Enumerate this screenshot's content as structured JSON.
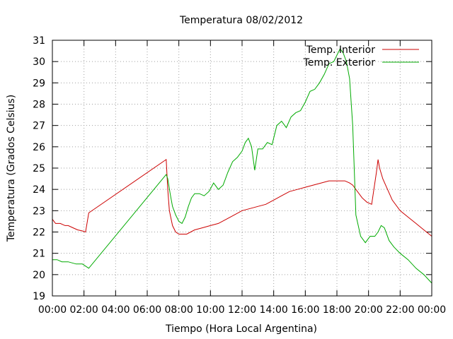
{
  "chart_data": {
    "type": "line",
    "title": "Temperatura 08/02/2012",
    "xlabel": "Tiempo (Hora Local Argentina)",
    "ylabel": "Temperatura (Grados Celsius)",
    "xlim": [
      0,
      24
    ],
    "ylim": [
      19,
      31
    ],
    "x_ticks": [
      "00:00",
      "02:00",
      "04:00",
      "06:00",
      "08:00",
      "10:00",
      "12:00",
      "14:00",
      "16:00",
      "18:00",
      "20:00",
      "22:00",
      "00:00"
    ],
    "y_ticks": [
      "19",
      "20",
      "21",
      "22",
      "23",
      "24",
      "25",
      "26",
      "27",
      "28",
      "29",
      "30",
      "31"
    ],
    "grid": true,
    "legend_position": "top-right",
    "series": [
      {
        "name": "Temp. Interior",
        "color": "#cc0000",
        "x": [
          0,
          0.2,
          0.5,
          0.8,
          1.0,
          1.3,
          1.6,
          1.9,
          2.1,
          2.3,
          7.2,
          7.3,
          7.4,
          7.6,
          7.8,
          8.0,
          8.5,
          9.0,
          9.5,
          10.0,
          10.5,
          11.0,
          11.5,
          12.0,
          12.5,
          13.0,
          13.5,
          14.0,
          14.5,
          15.0,
          15.5,
          16.0,
          16.5,
          17.0,
          17.5,
          18.0,
          18.5,
          18.8,
          19.0,
          19.3,
          19.6,
          19.9,
          20.2,
          20.5,
          20.6,
          20.7,
          20.9,
          21.2,
          21.5,
          22.0,
          22.5,
          23.0,
          23.5,
          24.0
        ],
        "y": [
          22.6,
          22.4,
          22.4,
          22.3,
          22.3,
          22.2,
          22.1,
          22.05,
          22.0,
          22.9,
          25.4,
          24.0,
          23.0,
          22.3,
          22.0,
          21.9,
          21.9,
          22.1,
          22.2,
          22.3,
          22.4,
          22.6,
          22.8,
          23.0,
          23.1,
          23.2,
          23.3,
          23.5,
          23.7,
          23.9,
          24.0,
          24.1,
          24.2,
          24.3,
          24.4,
          24.4,
          24.4,
          24.3,
          24.2,
          23.9,
          23.6,
          23.4,
          23.3,
          24.8,
          25.4,
          25.0,
          24.5,
          24.0,
          23.5,
          23.0,
          22.7,
          22.4,
          22.1,
          21.8
        ]
      },
      {
        "name": "Temp. Exterior",
        "color": "#00aa00",
        "x": [
          0,
          0.3,
          0.6,
          1.0,
          1.5,
          1.9,
          2.1,
          2.3,
          7.2,
          7.3,
          7.45,
          7.6,
          7.8,
          8.0,
          8.2,
          8.4,
          8.6,
          8.8,
          9.0,
          9.3,
          9.6,
          9.9,
          10.2,
          10.5,
          10.8,
          11.1,
          11.4,
          11.7,
          12.0,
          12.2,
          12.4,
          12.6,
          12.8,
          13.0,
          13.3,
          13.6,
          13.9,
          14.2,
          14.5,
          14.8,
          15.1,
          15.4,
          15.7,
          16.0,
          16.3,
          16.6,
          16.9,
          17.2,
          17.5,
          17.8,
          18.0,
          18.2,
          18.4,
          18.6,
          18.8,
          19.0,
          19.2,
          19.5,
          19.8,
          20.1,
          20.4,
          20.6,
          20.8,
          21.0,
          21.3,
          21.6,
          22.0,
          22.5,
          23.0,
          23.5,
          24.0
        ],
        "y": [
          20.7,
          20.7,
          20.6,
          20.6,
          20.5,
          20.5,
          20.4,
          20.3,
          24.7,
          24.5,
          23.8,
          23.2,
          22.8,
          22.5,
          22.4,
          22.7,
          23.2,
          23.6,
          23.8,
          23.8,
          23.7,
          23.9,
          24.3,
          24.0,
          24.2,
          24.8,
          25.3,
          25.5,
          25.8,
          26.2,
          26.4,
          26.0,
          24.9,
          25.9,
          25.9,
          26.2,
          26.1,
          27.0,
          27.2,
          26.9,
          27.4,
          27.6,
          27.7,
          28.1,
          28.6,
          28.7,
          29.0,
          29.4,
          29.9,
          30.0,
          30.3,
          30.6,
          30.4,
          30.0,
          29.2,
          27.0,
          22.8,
          21.8,
          21.5,
          21.8,
          21.8,
          22.0,
          22.3,
          22.2,
          21.6,
          21.3,
          21.0,
          20.7,
          20.3,
          20.0,
          19.6
        ]
      }
    ]
  }
}
